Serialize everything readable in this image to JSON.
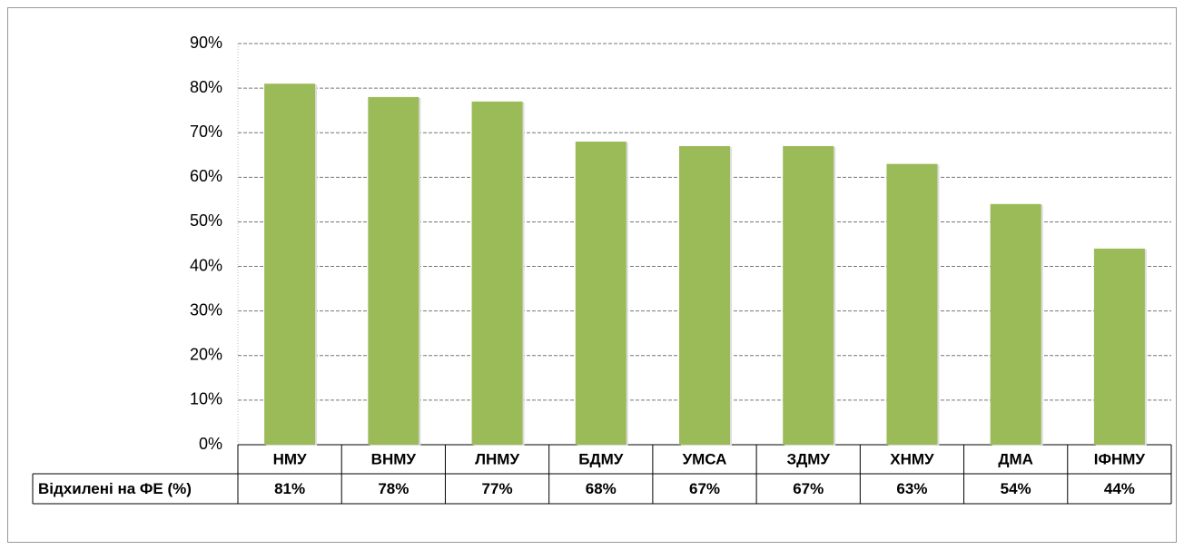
{
  "chart_data": {
    "type": "bar",
    "categories": [
      "НМУ",
      "ВНМУ",
      "ЛНМУ",
      "БДМУ",
      "УМСА",
      "ЗДМУ",
      "ХНМУ",
      "ДМА",
      "ІФНМУ"
    ],
    "series": [
      {
        "name": "Відхилені на ФЕ (%)",
        "color": "#9bbb59",
        "values": [
          81,
          78,
          77,
          68,
          67,
          67,
          63,
          54,
          44
        ],
        "value_labels": [
          "81%",
          "78%",
          "77%",
          "68%",
          "67%",
          "67%",
          "63%",
          "54%",
          "44%"
        ]
      }
    ],
    "ylim": [
      0,
      90
    ],
    "yticks": [
      {
        "value": 0,
        "label": "0%"
      },
      {
        "value": 10,
        "label": "10%"
      },
      {
        "value": 20,
        "label": "20%"
      },
      {
        "value": 30,
        "label": "30%"
      },
      {
        "value": 40,
        "label": "40%"
      },
      {
        "value": 50,
        "label": "50%"
      },
      {
        "value": 60,
        "label": "60%"
      },
      {
        "value": 70,
        "label": "70%"
      },
      {
        "value": 80,
        "label": "80%"
      },
      {
        "value": 90,
        "label": "90%"
      }
    ],
    "grid": true
  }
}
